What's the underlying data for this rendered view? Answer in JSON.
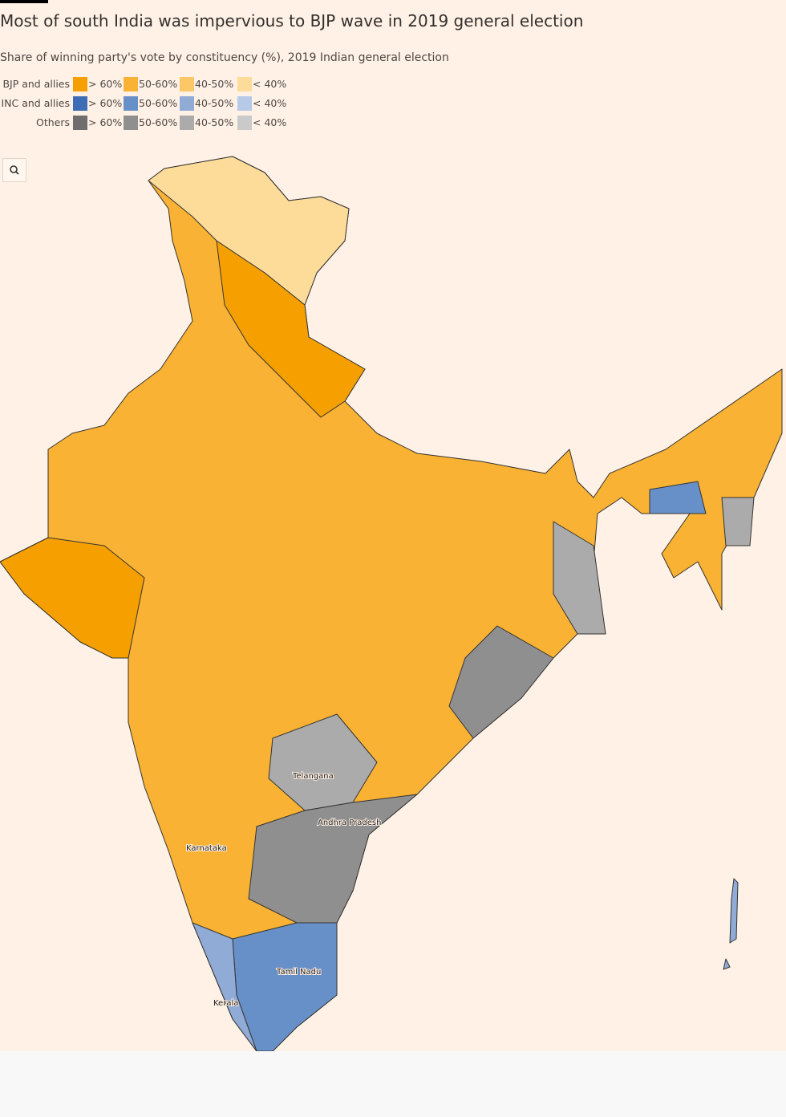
{
  "title": "Most of south India was impervious to BJP wave in 2019 general election",
  "subtitle": "Share of winning party's vote by constituency (%), 2019 Indian general election",
  "legend": {
    "bins": [
      "> 60%",
      "50-60%",
      "40-50%",
      "< 40%"
    ],
    "groups": [
      {
        "name": "BJP and allies",
        "colors": [
          "#f5a000",
          "#f9b233",
          "#fcc766",
          "#fddc9a"
        ]
      },
      {
        "name": "INC and allies",
        "colors": [
          "#3d6db5",
          "#6890c8",
          "#8fabd6",
          "#b6c9e8"
        ]
      },
      {
        "name": "Others",
        "colors": [
          "#6e6e6e",
          "#8f8f8f",
          "#ababab",
          "#cacaca"
        ]
      }
    ]
  },
  "map_labels": [
    "Telangana",
    "Andhra Pradesh",
    "Karnataka",
    "Tamil Nadu",
    "Kerala"
  ]
}
